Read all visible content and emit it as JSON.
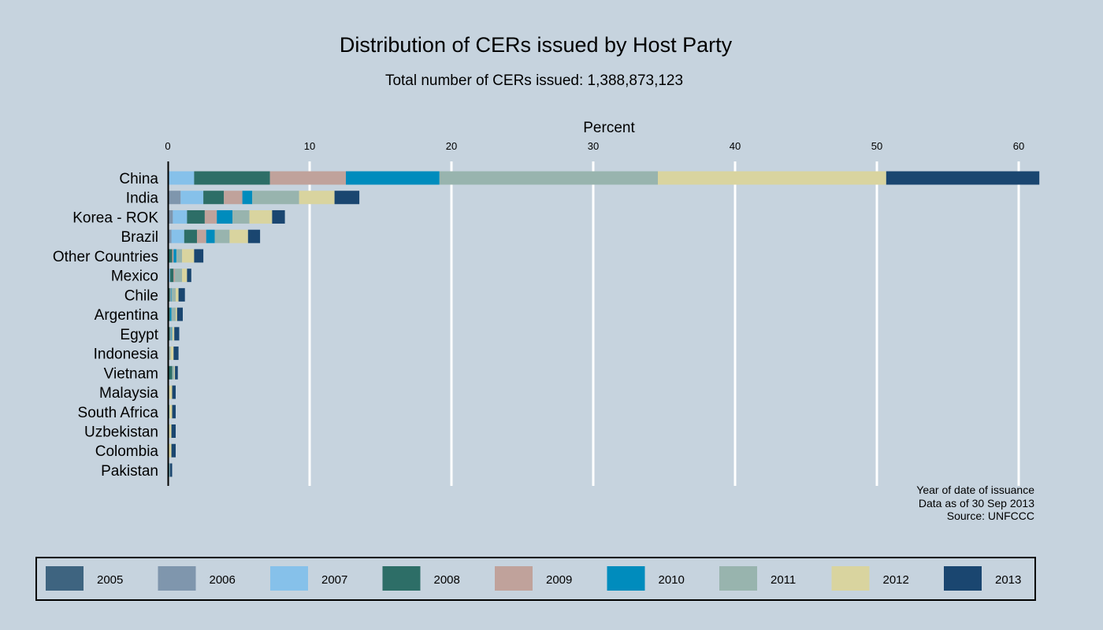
{
  "chart_data": {
    "type": "bar",
    "orientation": "horizontal",
    "stacked": true,
    "title": "Distribution of CERs issued by Host Party",
    "subtitle": "Total number of CERs issued: 1,388,873,123",
    "xlabel": "Percent",
    "xlim": [
      0,
      61.5
    ],
    "xticks": [
      0,
      10,
      20,
      30,
      40,
      50,
      60
    ],
    "grid": true,
    "legend_position": "bottom",
    "legend_title": "",
    "notes": [
      "Year of date of issuance",
      "Data as of 30 Sep 2013",
      "Source: UNFCCC"
    ],
    "categories": [
      "China",
      "India",
      "Korea - ROK",
      "Brazil",
      "Other Countries",
      "Mexico",
      "Chile",
      "Argentina",
      "Egypt",
      "Indonesia",
      "Vietnam",
      "Malaysia",
      "South Africa",
      "Uzbekistan",
      "Colombia",
      "Pakistan"
    ],
    "series": [
      {
        "name": "2005",
        "color": "#3e6480",
        "values": [
          0,
          0,
          0,
          0,
          0,
          0,
          0,
          0,
          0,
          0,
          0,
          0,
          0,
          0,
          0,
          0
        ]
      },
      {
        "name": "2006",
        "color": "#7f96ad",
        "values": [
          0,
          0.85,
          0.3,
          0.2,
          0,
          0,
          0,
          0,
          0,
          0,
          0,
          0,
          0,
          0,
          0,
          0
        ]
      },
      {
        "name": "2007",
        "color": "#86c1ea",
        "values": [
          1.8,
          1.6,
          1.0,
          0.9,
          0,
          0.1,
          0,
          0,
          0,
          0,
          0,
          0,
          0,
          0,
          0,
          0
        ]
      },
      {
        "name": "2008",
        "color": "#2d6e67",
        "values": [
          5.35,
          1.45,
          1.25,
          0.9,
          0.25,
          0.25,
          0.1,
          0.1,
          0.1,
          0,
          0.25,
          0,
          0,
          0,
          0,
          0
        ]
      },
      {
        "name": "2009",
        "color": "#c0a29b",
        "values": [
          5.35,
          1.3,
          0.85,
          0.65,
          0.1,
          0.1,
          0.05,
          0,
          0.05,
          0,
          0,
          0,
          0,
          0,
          0,
          0
        ]
      },
      {
        "name": "2010",
        "color": "#008cbd",
        "values": [
          6.6,
          0.7,
          1.1,
          0.6,
          0.2,
          0,
          0.05,
          0.1,
          0.05,
          0,
          0,
          0,
          0.05,
          0,
          0,
          0.05
        ]
      },
      {
        "name": "2011",
        "color": "#98b4ae",
        "values": [
          15.4,
          3.3,
          1.2,
          1.05,
          0.4,
          0.5,
          0.3,
          0.3,
          0.1,
          0.15,
          0.15,
          0.05,
          0,
          0.05,
          0,
          0.05
        ]
      },
      {
        "name": "2012",
        "color": "#d9d49f",
        "values": [
          16.1,
          2.5,
          1.6,
          1.3,
          0.85,
          0.35,
          0.2,
          0.1,
          0.1,
          0.2,
          0.05,
          0.2,
          0.2,
          0.15,
          0.2,
          0
        ]
      },
      {
        "name": "2013",
        "color": "#1a4670",
        "values": [
          10.8,
          1.75,
          0.9,
          0.85,
          0.65,
          0.3,
          0.45,
          0.4,
          0.35,
          0.35,
          0.2,
          0.25,
          0.25,
          0.3,
          0.3,
          0.15
        ]
      }
    ]
  }
}
